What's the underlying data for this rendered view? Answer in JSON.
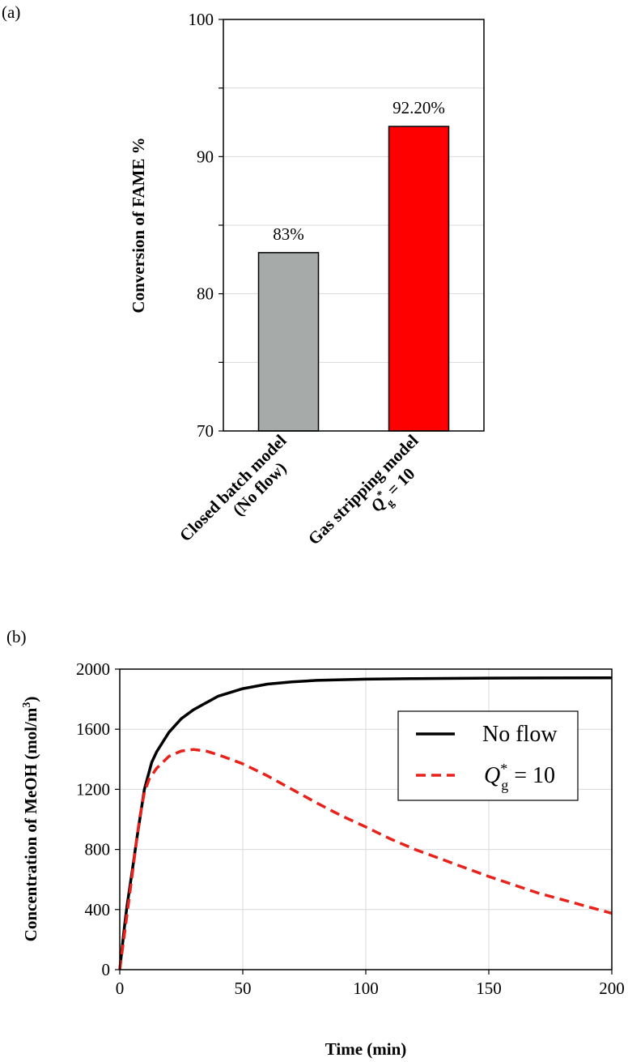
{
  "panels": {
    "a": "(a)",
    "b": "(b)"
  },
  "chart_data": [
    {
      "type": "bar",
      "ylabel": "Conversion of FAME %",
      "ylim": [
        70,
        100
      ],
      "yticks": [
        70,
        80,
        90,
        100
      ],
      "grid": true,
      "categories": [
        {
          "line1": "Closed batch model",
          "line2": "(No flow)"
        },
        {
          "line1": "Gas stripping model",
          "line2_main": "Q",
          "line2_sup": "*",
          "line2_sub": "g",
          "line2_rest": " = 10"
        }
      ],
      "values": [
        83,
        92.2
      ],
      "data_labels": [
        "83%",
        "92.20%"
      ],
      "colors": [
        "#a6aaa9",
        "#ff0000"
      ]
    },
    {
      "type": "line",
      "xlabel": "Time (min)",
      "ylabel_main": "Concentration of MeOH (mol/m",
      "ylabel_sup": "3",
      "ylabel_end": ")",
      "xlim": [
        0,
        200
      ],
      "ylim": [
        0,
        2000
      ],
      "xticks": [
        0,
        50,
        100,
        150,
        200
      ],
      "yticks": [
        0,
        400,
        800,
        1200,
        1600,
        2000
      ],
      "grid": true,
      "legend_position": "top-right",
      "series": [
        {
          "legend": "No flow",
          "color": "#000000",
          "style": "solid",
          "x": [
            0,
            1,
            2,
            3,
            5,
            7,
            10,
            13,
            15,
            20,
            25,
            30,
            40,
            50,
            60,
            70,
            80,
            100,
            120,
            150,
            175,
            200
          ],
          "y": [
            0,
            150,
            300,
            430,
            650,
            880,
            1200,
            1380,
            1450,
            1580,
            1670,
            1730,
            1820,
            1870,
            1900,
            1915,
            1925,
            1933,
            1937,
            1940,
            1941,
            1942
          ]
        },
        {
          "legend_main": "Q",
          "legend_sup": "*",
          "legend_sub": "g",
          "legend_rest": " = 10",
          "color": "#e8221b",
          "style": "dashed",
          "x": [
            0,
            2,
            4,
            6,
            8,
            10,
            12,
            15,
            20,
            25,
            30,
            35,
            40,
            50,
            60,
            70,
            80,
            90,
            100,
            110,
            120,
            130,
            140,
            150,
            160,
            170,
            180,
            190,
            200
          ],
          "y": [
            0,
            250,
            500,
            750,
            1000,
            1180,
            1270,
            1340,
            1420,
            1455,
            1465,
            1455,
            1430,
            1370,
            1290,
            1200,
            1110,
            1025,
            950,
            870,
            800,
            740,
            680,
            620,
            565,
            510,
            465,
            420,
            375
          ]
        }
      ]
    }
  ]
}
